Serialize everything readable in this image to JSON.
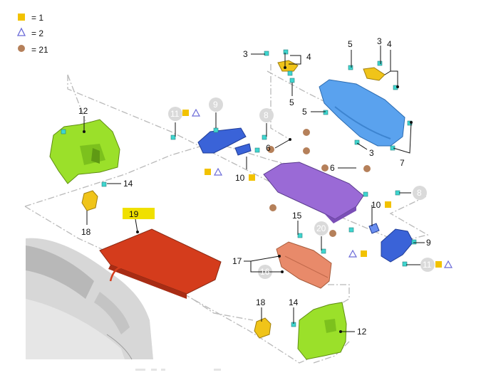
{
  "legend": {
    "items": [
      {
        "symbol": "square-icon",
        "text": "= 1",
        "color": "#f2c200"
      },
      {
        "symbol": "triangle-icon",
        "text": "= 2",
        "color": "#6a6ad8"
      },
      {
        "symbol": "circle-icon",
        "text": "= 21",
        "color": "#b5805a"
      }
    ]
  },
  "callouts": {
    "c3a": "3",
    "c4a": "4",
    "c5a": "5",
    "c5b": "5",
    "c3b": "3",
    "c4b": "4",
    "c5c": "5",
    "c3c": "3",
    "c7": "7",
    "c12a": "12",
    "c14a": "14",
    "c18a": "18",
    "c19": "19",
    "c11a": "11",
    "c9a": "9",
    "c8a": "8",
    "c6a": "6",
    "c10a": "10",
    "c6b": "6",
    "c8b": "8",
    "c10b": "10",
    "c9b": "9",
    "c11b": "11",
    "c15": "15",
    "c20": "20",
    "c17": "17",
    "c16": "16",
    "c18b": "18",
    "c14b": "14",
    "c12b": "12"
  },
  "colors": {
    "green_panel": "#9be02a",
    "yellow_bracket": "#f0c419",
    "blue_trim": "#5aa2ee",
    "blue_bracket": "#3a63d8",
    "purple_cover": "#9a6ad6",
    "orange_cover": "#e88a6a",
    "red_floor": "#d43c1c",
    "fastener": "#3fd6d0",
    "brown_clip": "#b5805a"
  }
}
